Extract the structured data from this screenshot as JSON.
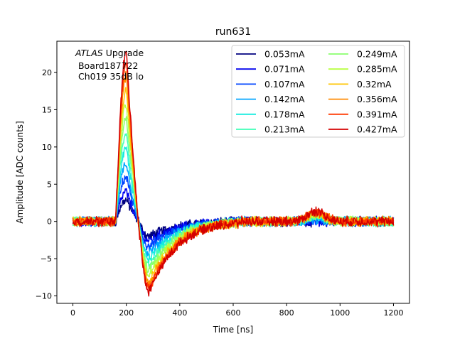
{
  "chart_data": {
    "type": "line",
    "title": "run631",
    "xlabel": "Time [ns]",
    "ylabel": "Amplitude [ADC counts]",
    "xlim": [
      -60,
      1260
    ],
    "ylim": [
      -11,
      24.2
    ],
    "xticks": [
      0,
      200,
      400,
      600,
      800,
      1000,
      1200
    ],
    "xtick_labels": [
      "0",
      "200",
      "400",
      "600",
      "800",
      "1000",
      "1200"
    ],
    "yticks": [
      -10,
      -5,
      0,
      5,
      10,
      15,
      20
    ],
    "ytick_labels": [
      "−10",
      "−5",
      "0",
      "5",
      "10",
      "15",
      "20"
    ],
    "grid": false,
    "legend_position": "top-right",
    "legend_columns": 2,
    "annotation": {
      "line1_italic": "ATLAS",
      "line1_rest": " Upgrade",
      "line2": " Board187722",
      "line3": " Ch019 35dB lo"
    },
    "x_range": [
      0,
      1200
    ],
    "series": [
      {
        "name": "0.053mA",
        "color": "#00007f",
        "peak": 2.9,
        "undershoot": -2.0
      },
      {
        "name": "0.071mA",
        "color": "#0000ee",
        "peak": 4.0,
        "undershoot": -2.6
      },
      {
        "name": "0.107mA",
        "color": "#0044ff",
        "peak": 6.0,
        "undershoot": -3.4
      },
      {
        "name": "0.142mA",
        "color": "#00a4ff",
        "peak": 7.9,
        "undershoot": -4.3
      },
      {
        "name": "0.178mA",
        "color": "#14ecdf",
        "peak": 9.9,
        "undershoot": -5.0
      },
      {
        "name": "0.213mA",
        "color": "#3fffb7",
        "peak": 11.8,
        "undershoot": -5.8
      },
      {
        "name": "0.249mA",
        "color": "#8aff6d",
        "peak": 13.8,
        "undershoot": -6.5
      },
      {
        "name": "0.285mA",
        "color": "#b7ff3f",
        "peak": 15.7,
        "undershoot": -7.2
      },
      {
        "name": "0.32mA",
        "color": "#ffc400",
        "peak": 17.6,
        "undershoot": -7.9
      },
      {
        "name": "0.356mA",
        "color": "#ff8900",
        "peak": 19.5,
        "undershoot": -8.5
      },
      {
        "name": "0.391mA",
        "color": "#ff3800",
        "peak": 21.3,
        "undershoot": -9.1
      },
      {
        "name": "0.427mA",
        "color": "#d40000",
        "peak": 22.7,
        "undershoot": -9.4
      }
    ]
  }
}
